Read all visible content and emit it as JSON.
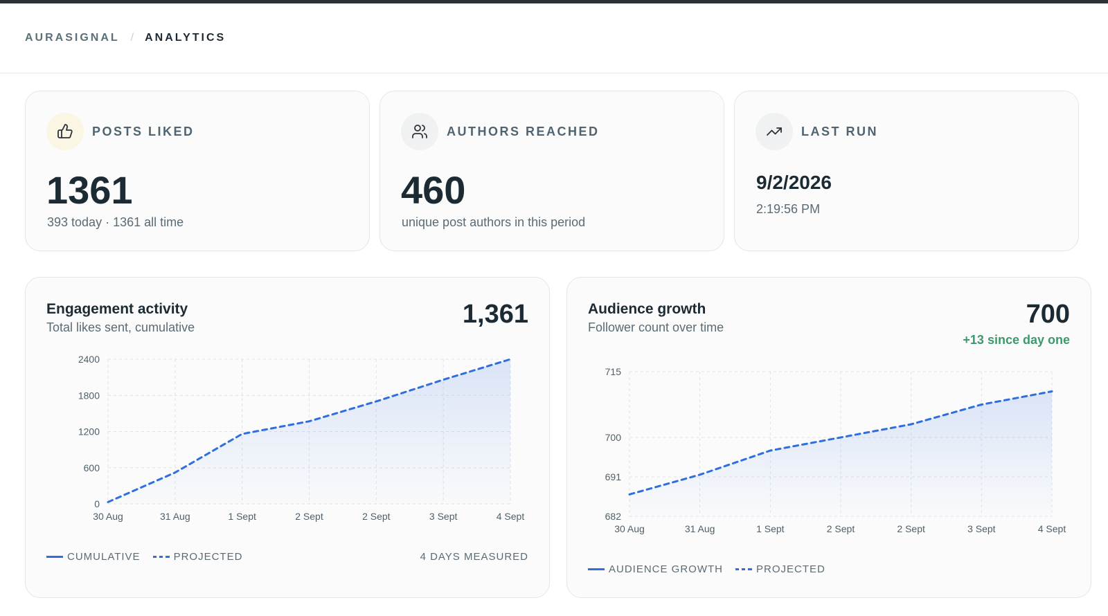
{
  "breadcrumb": {
    "root": "AURASIGNAL",
    "separator": "/",
    "current": "ANALYTICS"
  },
  "stats": {
    "posts_liked": {
      "label": "POSTS LIKED",
      "value": "1361",
      "subtitle": "393 today · 1361 all time",
      "icon": "thumbs-up-icon"
    },
    "authors_reached": {
      "label": "AUTHORS REACHED",
      "value": "460",
      "subtitle": "unique post authors in this period",
      "icon": "users-icon"
    },
    "last_run": {
      "label": "LAST RUN",
      "date": "9/2/2026",
      "time": "2:19:56 PM",
      "icon": "trending-up-icon"
    }
  },
  "engagement": {
    "title": "Engagement activity",
    "subtitle": "Total likes sent, cumulative",
    "total": "1,361",
    "legend": {
      "cumulative": "CUMULATIVE",
      "projected": "PROJECTED",
      "footnote": "4 DAYS MEASURED"
    }
  },
  "audience": {
    "title": "Audience growth",
    "subtitle": "Follower count over time",
    "total": "700",
    "delta": "+13 since day one",
    "legend": {
      "series": "AUDIENCE GROWTH",
      "projected": "PROJECTED"
    }
  },
  "colors": {
    "accent": "#2f6ee0",
    "positive": "#3c9a6a",
    "muted": "#5a6b75",
    "heading": "#1b2a33"
  },
  "chart_data": [
    {
      "type": "area",
      "title": "Engagement activity",
      "subtitle": "Total likes sent, cumulative",
      "categories": [
        "30 Aug",
        "31 Aug",
        "1 Sept",
        "2 Sept",
        "2 Sept",
        "3 Sept",
        "4 Sept"
      ],
      "series": [
        {
          "name": "PROJECTED",
          "style": "dashed",
          "values": [
            30,
            520,
            1160,
            1370,
            1700,
            2060,
            2400
          ]
        }
      ],
      "yticks": [
        0,
        600,
        1200,
        1800,
        2400
      ],
      "ylim": [
        0,
        2400
      ],
      "grid": true,
      "legend": "bottom-left"
    },
    {
      "type": "area",
      "title": "Audience growth",
      "subtitle": "Follower count over time",
      "categories": [
        "30 Aug",
        "31 Aug",
        "1 Sept",
        "2 Sept",
        "2 Sept",
        "3 Sept",
        "4 Sept"
      ],
      "series": [
        {
          "name": "PROJECTED",
          "style": "dashed",
          "values": [
            687,
            691.5,
            697,
            700,
            703,
            707.5,
            710.5
          ]
        }
      ],
      "yticks": [
        682,
        691,
        700,
        715
      ],
      "ylim": [
        682,
        715
      ],
      "grid": true,
      "legend": "bottom-left"
    }
  ]
}
